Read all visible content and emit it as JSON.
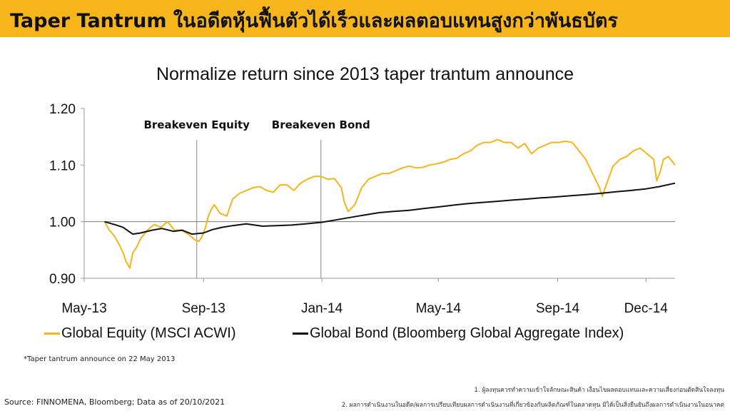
{
  "header": {
    "title": "Taper Tantrum ในอดีตหุ้นฟื้นตัวได้เร็วและผลตอบแทนสูงกว่าพันธบัตร",
    "background_color": "#f5b51b"
  },
  "chart_data": {
    "type": "line",
    "title": "Normalize return since 2013 taper trantum announce",
    "x_start": "2013-05-22",
    "x_end": "2014-12-31",
    "xlim": [
      "2013-05-01",
      "2014-12-31"
    ],
    "ylim": [
      0.9,
      1.2
    ],
    "y_ticks": [
      0.9,
      1.0,
      1.1,
      1.2
    ],
    "y_tick_labels": [
      "0.90",
      "1.00",
      "1.10",
      "1.20"
    ],
    "x_ticks": [
      "2013-05-01",
      "2013-09-01",
      "2014-01-01",
      "2014-05-01",
      "2014-09-01",
      "2014-12-01"
    ],
    "x_tick_labels": [
      "May-13",
      "Sep-13",
      "Jan-14",
      "May-14",
      "Sep-14",
      "Dec-14"
    ],
    "reference_line": 1.0,
    "grid": false,
    "legend": "bottom",
    "annotations": [
      {
        "label": "Breakeven Equity",
        "x": "2013-08-25"
      },
      {
        "label": "Breakeven Bond",
        "x": "2013-12-31"
      }
    ],
    "series": [
      {
        "name": "Global Equity (MSCI ACWI)",
        "color": "#f5b51b",
        "x": [
          "2013-05-22",
          "2013-05-27",
          "2013-06-01",
          "2013-06-06",
          "2013-06-10",
          "2013-06-13",
          "2013-06-17",
          "2013-06-20",
          "2013-06-24",
          "2013-06-28",
          "2013-07-05",
          "2013-07-12",
          "2013-07-19",
          "2013-07-26",
          "2013-08-02",
          "2013-08-09",
          "2013-08-16",
          "2013-08-23",
          "2013-08-27",
          "2013-08-30",
          "2013-09-03",
          "2013-09-06",
          "2013-09-09",
          "2013-09-12",
          "2013-09-18",
          "2013-09-25",
          "2013-10-01",
          "2013-10-08",
          "2013-10-15",
          "2013-10-22",
          "2013-10-29",
          "2013-11-05",
          "2013-11-12",
          "2013-11-19",
          "2013-11-26",
          "2013-12-03",
          "2013-12-10",
          "2013-12-17",
          "2013-12-24",
          "2013-12-31",
          "2014-01-07",
          "2014-01-14",
          "2014-01-21",
          "2014-01-24",
          "2014-01-28",
          "2014-02-04",
          "2014-02-11",
          "2014-02-18",
          "2014-02-25",
          "2014-03-04",
          "2014-03-11",
          "2014-03-18",
          "2014-03-25",
          "2014-04-01",
          "2014-04-08",
          "2014-04-15",
          "2014-04-22",
          "2014-04-29",
          "2014-05-06",
          "2014-05-13",
          "2014-05-20",
          "2014-05-27",
          "2014-06-03",
          "2014-06-10",
          "2014-06-17",
          "2014-06-24",
          "2014-07-01",
          "2014-07-08",
          "2014-07-15",
          "2014-07-22",
          "2014-07-29",
          "2014-08-05",
          "2014-08-12",
          "2014-08-19",
          "2014-08-26",
          "2014-09-02",
          "2014-09-09",
          "2014-09-16",
          "2014-09-23",
          "2014-09-30",
          "2014-10-07",
          "2014-10-14",
          "2014-10-17",
          "2014-10-21",
          "2014-10-28",
          "2014-11-04",
          "2014-11-11",
          "2014-11-18",
          "2014-11-25",
          "2014-12-02",
          "2014-12-09",
          "2014-12-12",
          "2014-12-16",
          "2014-12-19",
          "2014-12-24",
          "2014-12-31"
        ],
        "values": [
          1.0,
          0.985,
          0.975,
          0.96,
          0.945,
          0.93,
          0.918,
          0.945,
          0.955,
          0.97,
          0.985,
          0.995,
          0.99,
          1.0,
          0.985,
          0.985,
          0.978,
          0.968,
          0.965,
          0.972,
          0.99,
          1.01,
          1.022,
          1.03,
          1.015,
          1.01,
          1.04,
          1.05,
          1.055,
          1.06,
          1.062,
          1.055,
          1.052,
          1.065,
          1.065,
          1.055,
          1.068,
          1.075,
          1.08,
          1.08,
          1.075,
          1.076,
          1.06,
          1.035,
          1.018,
          1.03,
          1.06,
          1.075,
          1.08,
          1.085,
          1.085,
          1.09,
          1.095,
          1.098,
          1.095,
          1.096,
          1.1,
          1.102,
          1.105,
          1.11,
          1.112,
          1.12,
          1.125,
          1.135,
          1.14,
          1.14,
          1.145,
          1.14,
          1.14,
          1.13,
          1.138,
          1.12,
          1.13,
          1.135,
          1.14,
          1.14,
          1.142,
          1.14,
          1.125,
          1.11,
          1.085,
          1.06,
          1.045,
          1.065,
          1.098,
          1.11,
          1.115,
          1.125,
          1.13,
          1.12,
          1.11,
          1.072,
          1.09,
          1.11,
          1.115,
          1.1
        ]
      },
      {
        "name": "Global Bond (Bloomberg Global Aggregate Index)",
        "color": "#111111",
        "x": [
          "2013-05-22",
          "2013-06-01",
          "2013-06-10",
          "2013-06-20",
          "2013-06-28",
          "2013-07-10",
          "2013-07-20",
          "2013-08-01",
          "2013-08-10",
          "2013-08-20",
          "2013-09-01",
          "2013-09-10",
          "2013-09-20",
          "2013-10-01",
          "2013-10-15",
          "2013-11-01",
          "2013-11-15",
          "2013-12-01",
          "2013-12-15",
          "2014-01-01",
          "2014-01-15",
          "2014-02-01",
          "2014-02-15",
          "2014-03-01",
          "2014-03-15",
          "2014-04-01",
          "2014-04-15",
          "2014-05-01",
          "2014-05-15",
          "2014-06-01",
          "2014-06-15",
          "2014-07-01",
          "2014-07-15",
          "2014-08-01",
          "2014-08-15",
          "2014-09-01",
          "2014-09-15",
          "2014-10-01",
          "2014-10-15",
          "2014-11-01",
          "2014-11-15",
          "2014-12-01",
          "2014-12-15",
          "2014-12-31"
        ],
        "values": [
          1.0,
          0.995,
          0.99,
          0.978,
          0.98,
          0.985,
          0.988,
          0.983,
          0.985,
          0.978,
          0.98,
          0.986,
          0.99,
          0.993,
          0.996,
          0.992,
          0.993,
          0.994,
          0.996,
          0.999,
          1.003,
          1.008,
          1.012,
          1.016,
          1.018,
          1.02,
          1.023,
          1.026,
          1.029,
          1.032,
          1.034,
          1.036,
          1.038,
          1.04,
          1.042,
          1.044,
          1.046,
          1.048,
          1.05,
          1.053,
          1.055,
          1.058,
          1.062,
          1.068
        ]
      }
    ]
  },
  "footnote": "*Taper tantrum announce on 22 May 2013",
  "source": "Source: FINNOMENA, Bloomberg; Data as of 20/10/2021",
  "disclaimers": [
    "1. ผู้ลงทุนควรทำความเข้าใจลักษณะสินค้า เงื่อนไขผลตอบแทนและความเสี่ยงก่อนตัดสินใจลงทุน",
    "2. ผลการดำเนินงานในอดีต/ผลการเปรียบเทียบผลการดำเนินงานที่เกี่ยวข้องกับผลิตภัณฑ์ในตลาดทุน มิได้เป็นสิ่งยืนยันถึงผลการดำเนินงานในอนาคต"
  ]
}
